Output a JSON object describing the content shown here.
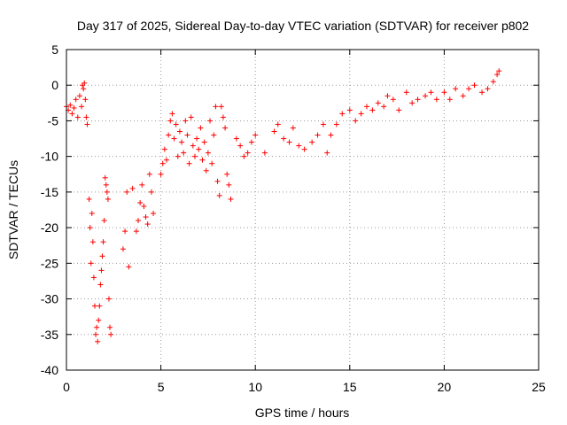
{
  "colors": {
    "series": "#ff0000",
    "grid": "#9a9a9a",
    "axis": "#000000",
    "background": "#ffffff"
  },
  "chart_data": {
    "type": "scatter",
    "title": "Day 317 of 2025, Sidereal Day-to-day VTEC variation (SDTVAR) for receiver p802",
    "xlabel": "GPS time / hours",
    "ylabel": "SDTVAR / TECUs",
    "xlim": [
      0,
      25
    ],
    "ylim": [
      -40,
      5
    ],
    "xticks": [
      0,
      5,
      10,
      15,
      20,
      25
    ],
    "yticks": [
      -40,
      -35,
      -30,
      -25,
      -20,
      -15,
      -10,
      -5,
      0,
      5
    ],
    "grid": true,
    "marker": "plus",
    "series": [
      {
        "name": "SDTVAR",
        "x": [
          0.0,
          0.1,
          0.2,
          0.3,
          0.4,
          0.5,
          0.6,
          0.7,
          0.8,
          0.85,
          0.9,
          0.95,
          1.0,
          1.05,
          1.1,
          1.2,
          1.25,
          1.3,
          1.35,
          1.4,
          1.45,
          1.5,
          1.55,
          1.6,
          1.65,
          1.7,
          1.75,
          1.8,
          1.85,
          1.9,
          1.95,
          2.0,
          2.05,
          2.1,
          2.15,
          2.2,
          2.25,
          2.3,
          2.35,
          3.0,
          3.1,
          3.2,
          3.3,
          3.5,
          3.7,
          3.8,
          3.9,
          4.0,
          4.1,
          4.2,
          4.3,
          4.4,
          4.5,
          4.6,
          5.0,
          5.1,
          5.2,
          5.3,
          5.4,
          5.5,
          5.6,
          5.7,
          5.8,
          5.9,
          6.0,
          6.1,
          6.2,
          6.3,
          6.4,
          6.5,
          6.6,
          6.7,
          6.8,
          6.9,
          7.0,
          7.1,
          7.2,
          7.3,
          7.4,
          7.5,
          7.6,
          7.7,
          7.8,
          7.9,
          8.0,
          8.1,
          8.2,
          8.3,
          8.4,
          8.5,
          8.6,
          8.7,
          9.0,
          9.2,
          9.4,
          9.6,
          9.8,
          10.0,
          10.5,
          11.0,
          11.2,
          11.5,
          11.8,
          12.0,
          12.3,
          12.6,
          13.0,
          13.3,
          13.6,
          13.8,
          14.0,
          14.3,
          14.6,
          15.0,
          15.3,
          15.6,
          15.9,
          16.2,
          16.5,
          16.8,
          17.0,
          17.3,
          17.6,
          18.0,
          18.3,
          18.6,
          19.0,
          19.3,
          19.6,
          20.0,
          20.3,
          20.6,
          21.0,
          21.3,
          21.6,
          22.0,
          22.3,
          22.6,
          22.8,
          22.9
        ],
        "y": [
          -3.0,
          -3.5,
          -2.8,
          -4.0,
          -3.2,
          -2.0,
          -4.5,
          -1.5,
          -3.0,
          0.0,
          -0.5,
          0.3,
          -2.0,
          -4.5,
          -5.5,
          -16.0,
          -20.0,
          -25.0,
          -18.0,
          -22.0,
          -27.0,
          -31.0,
          -35.0,
          -34.0,
          -36.0,
          -33.0,
          -31.0,
          -28.0,
          -26.0,
          -24.0,
          -22.0,
          -19.0,
          -13.0,
          -14.0,
          -15.0,
          -16.0,
          -30.0,
          -34.0,
          -35.0,
          -23.0,
          -20.5,
          -15.0,
          -25.5,
          -14.5,
          -20.5,
          -19.0,
          -16.5,
          -14.0,
          -17.0,
          -18.5,
          -19.5,
          -12.5,
          -15.0,
          -18.0,
          -12.5,
          -11.0,
          -9.0,
          -10.5,
          -7.0,
          -5.0,
          -4.0,
          -7.5,
          -5.5,
          -10.0,
          -6.5,
          -8.0,
          -9.5,
          -5.0,
          -7.0,
          -11.0,
          -4.5,
          -8.5,
          -10.0,
          -7.5,
          -9.0,
          -6.0,
          -10.5,
          -8.0,
          -12.0,
          -9.5,
          -5.0,
          -11.0,
          -7.0,
          -3.0,
          -13.5,
          -15.5,
          -3.0,
          -4.5,
          -6.0,
          -12.5,
          -14.0,
          -16.0,
          -7.5,
          -8.5,
          -10.0,
          -9.5,
          -8.0,
          -7.0,
          -9.5,
          -6.5,
          -5.5,
          -7.5,
          -8.0,
          -6.0,
          -8.5,
          -9.0,
          -8.0,
          -7.0,
          -5.5,
          -9.5,
          -7.0,
          -5.5,
          -4.0,
          -3.5,
          -5.0,
          -4.0,
          -3.0,
          -3.5,
          -2.5,
          -3.0,
          -1.5,
          -2.0,
          -3.5,
          -1.0,
          -2.5,
          -2.0,
          -1.5,
          -1.0,
          -2.0,
          -1.0,
          -2.0,
          -0.5,
          -1.5,
          -0.5,
          0.0,
          -1.0,
          -0.5,
          0.5,
          1.5,
          2.0
        ]
      }
    ]
  }
}
